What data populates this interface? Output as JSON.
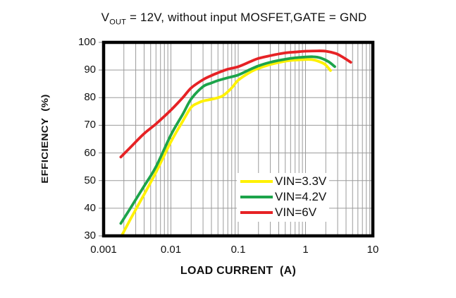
{
  "title": {
    "v": "V",
    "v_sub": "OUT",
    "rest": " = 12V, without input MOSFET,GATE = GND"
  },
  "axes": {
    "y_label": "EFFICIENCY  (%)",
    "x_label": "LOAD CURRENT  (A)",
    "y_ticks": [
      "100",
      "90",
      "80",
      "70",
      "60",
      "50",
      "40",
      "30"
    ],
    "x_ticks": [
      "0.001",
      "0.01",
      "0.1",
      "1",
      "10"
    ]
  },
  "legend": {
    "items": [
      {
        "label": "VIN=3.3V",
        "color": "#FFF100"
      },
      {
        "label": "VIN=4.2V",
        "color": "#1CA44A"
      },
      {
        "label": "VIN=6V",
        "color": "#E62225"
      }
    ]
  },
  "colors": {
    "grid": "#9B9B9B",
    "border": "#000000",
    "background": "#FFFFFF"
  },
  "chart_data": {
    "type": "line",
    "title": "VOUT = 12V, without input MOSFET, GATE = GND",
    "xlabel": "LOAD CURRENT (A)",
    "ylabel": "EFFICIENCY (%)",
    "x_scale": "log",
    "xlim": [
      0.001,
      10
    ],
    "ylim": [
      30,
      100
    ],
    "y_tick_step": 10,
    "grid": true,
    "legend_position": "inside-lower-right",
    "series": [
      {
        "name": "VIN=3.3V",
        "color": "#FFF100",
        "points": [
          [
            0.0019,
            30.5
          ],
          [
            0.0025,
            36
          ],
          [
            0.004,
            45
          ],
          [
            0.006,
            53
          ],
          [
            0.01,
            64
          ],
          [
            0.015,
            71.5
          ],
          [
            0.02,
            76.5
          ],
          [
            0.025,
            78
          ],
          [
            0.03,
            78.8
          ],
          [
            0.04,
            79.4
          ],
          [
            0.05,
            80
          ],
          [
            0.06,
            80.8
          ],
          [
            0.08,
            83.5
          ],
          [
            0.1,
            86.3
          ],
          [
            0.15,
            89.2
          ],
          [
            0.2,
            90.6
          ],
          [
            0.3,
            92
          ],
          [
            0.5,
            93.2
          ],
          [
            0.7,
            93.6
          ],
          [
            1,
            93.8
          ],
          [
            1.3,
            93.7
          ],
          [
            1.7,
            92.8
          ],
          [
            2,
            91.8
          ],
          [
            2.35,
            89.8
          ]
        ]
      },
      {
        "name": "VIN=4.2V",
        "color": "#1CA44A",
        "points": [
          [
            0.0018,
            34.5
          ],
          [
            0.0025,
            40
          ],
          [
            0.004,
            48
          ],
          [
            0.006,
            55
          ],
          [
            0.01,
            66.5
          ],
          [
            0.015,
            74
          ],
          [
            0.02,
            79.5
          ],
          [
            0.03,
            84
          ],
          [
            0.04,
            85.3
          ],
          [
            0.05,
            86.2
          ],
          [
            0.07,
            87.2
          ],
          [
            0.1,
            88.2
          ],
          [
            0.15,
            90.2
          ],
          [
            0.2,
            91.5
          ],
          [
            0.3,
            92.8
          ],
          [
            0.5,
            93.9
          ],
          [
            0.7,
            94.4
          ],
          [
            1,
            94.7
          ],
          [
            1.3,
            94.8
          ],
          [
            1.7,
            94.3
          ],
          [
            2.2,
            93
          ],
          [
            2.72,
            91.2
          ]
        ]
      },
      {
        "name": "VIN=6V",
        "color": "#E62225",
        "points": [
          [
            0.0018,
            58.5
          ],
          [
            0.0025,
            62
          ],
          [
            0.004,
            67
          ],
          [
            0.006,
            70.5
          ],
          [
            0.01,
            75.5
          ],
          [
            0.015,
            80
          ],
          [
            0.02,
            83.5
          ],
          [
            0.03,
            86.5
          ],
          [
            0.04,
            88
          ],
          [
            0.05,
            89
          ],
          [
            0.07,
            90.3
          ],
          [
            0.1,
            91.2
          ],
          [
            0.15,
            93
          ],
          [
            0.2,
            94.2
          ],
          [
            0.3,
            95.2
          ],
          [
            0.5,
            96.2
          ],
          [
            0.7,
            96.5
          ],
          [
            1,
            96.8
          ],
          [
            1.5,
            96.9
          ],
          [
            2,
            96.8
          ],
          [
            2.8,
            96
          ],
          [
            3.5,
            94.8
          ],
          [
            4.7,
            92.8
          ]
        ]
      }
    ]
  }
}
